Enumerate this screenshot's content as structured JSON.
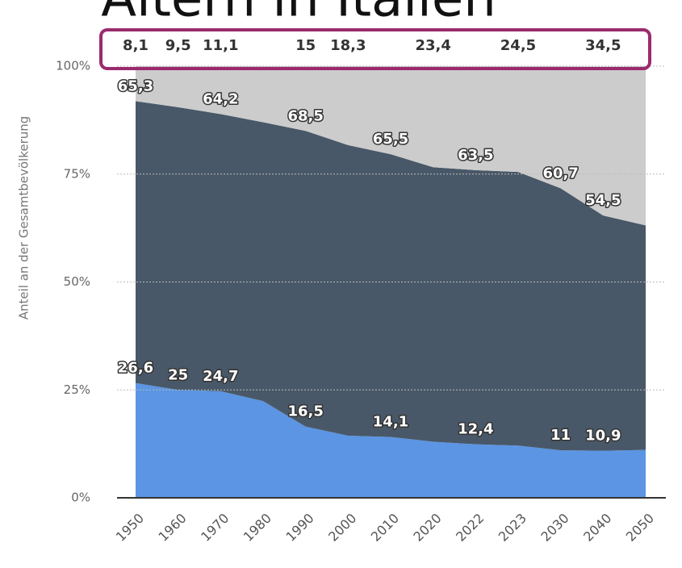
{
  "chart_data": {
    "type": "stacked_area",
    "title": "Altern in Italien",
    "y_label": "Anteil an der Gesamtbevölkerung",
    "categories": [
      "1950",
      "1960",
      "1970",
      "1980",
      "1990",
      "2000",
      "2010",
      "2020",
      "2022",
      "2023",
      "2030",
      "2040",
      "2050"
    ],
    "series": [
      {
        "color": "#5b95e3",
        "values": [
          26.6,
          25,
          24.7,
          22.4,
          16.5,
          14.4,
          14.1,
          13.0,
          12.4,
          12.1,
          11,
          10.9,
          11.1
        ],
        "value_labels": [
          "26,6",
          "25",
          "24,7",
          null,
          "16,5",
          null,
          "14,1",
          null,
          "12,4",
          null,
          "11",
          "10,9",
          null
        ]
      },
      {
        "color": "#495868",
        "values": [
          65.3,
          65.5,
          64.2,
          64.6,
          68.5,
          67.3,
          65.5,
          63.6,
          63.5,
          63.4,
          60.7,
          54.5,
          52.0
        ],
        "value_labels": [
          "65,3",
          null,
          "64,2",
          null,
          "68,5",
          null,
          "65,5",
          null,
          "63,5",
          null,
          "60,7",
          "54,5",
          null
        ]
      },
      {
        "color": "#cccccc",
        "values": [
          8.1,
          9.5,
          11.1,
          13.0,
          15,
          18.3,
          20.4,
          23.4,
          24.1,
          24.5,
          28.3,
          34.5,
          36.9
        ],
        "value_labels": [
          "8,1",
          "9,5",
          "11,1",
          null,
          "15",
          "18,3",
          null,
          "23,4",
          null,
          "24,5",
          null,
          "34,5",
          null
        ]
      }
    ],
    "ylim": [
      0,
      100
    ],
    "yticks": [
      {
        "value": 0,
        "label": "0%"
      },
      {
        "value": 25,
        "label": "25%"
      },
      {
        "value": 50,
        "label": "50%"
      },
      {
        "value": 75,
        "label": "75%"
      },
      {
        "value": 100,
        "label": "100%"
      }
    ],
    "grid": true
  }
}
